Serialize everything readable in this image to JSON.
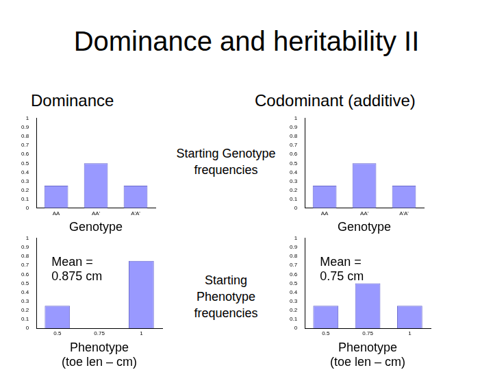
{
  "title": "Dominance and heritability II",
  "column_titles": [
    "Dominance",
    "Codominant (additive)"
  ],
  "row_labels": [
    "Starting Genotype frequencies",
    "Starting Phenotype frequencies"
  ],
  "chart_data": [
    {
      "type": "bar",
      "categories": [
        "AA",
        "AA'",
        "A'A'"
      ],
      "values": [
        0.25,
        0.5,
        0.25
      ],
      "color": "#9999ff",
      "x_label": [
        "Genotype"
      ],
      "ylim": [
        0,
        1
      ],
      "yticks": [
        0,
        0.1,
        0.2,
        0.3,
        0.4,
        0.5,
        0.6,
        0.7,
        0.8,
        0.9,
        1
      ],
      "grid": false
    },
    {
      "type": "bar",
      "categories": [
        "AA",
        "AA'",
        "A'A'"
      ],
      "values": [
        0.25,
        0.5,
        0.25
      ],
      "color": "#9999ff",
      "x_label": [
        "Genotype"
      ],
      "ylim": [
        0,
        1
      ],
      "yticks": [
        0,
        0.1,
        0.2,
        0.3,
        0.4,
        0.5,
        0.6,
        0.7,
        0.8,
        0.9,
        1
      ],
      "grid": false
    },
    {
      "type": "bar",
      "categories": [
        "0.5",
        "0.75",
        "1"
      ],
      "values": [
        0.25,
        0,
        0.75
      ],
      "color": "#9999ff",
      "x_label": [
        "Phenotype",
        "(toe len – cm)"
      ],
      "annotation": [
        "Mean =",
        "0.875 cm"
      ],
      "ylim": [
        0,
        1
      ],
      "yticks": [
        0,
        0.1,
        0.2,
        0.3,
        0.4,
        0.5,
        0.6,
        0.7,
        0.8,
        0.9,
        1
      ],
      "grid": false
    },
    {
      "type": "bar",
      "categories": [
        "0.5",
        "0.75",
        "1"
      ],
      "values": [
        0.25,
        0.5,
        0.25
      ],
      "color": "#9999ff",
      "x_label": [
        "Phenotype",
        "(toe len – cm)"
      ],
      "annotation": [
        "Mean =",
        "0.75 cm"
      ],
      "ylim": [
        0,
        1
      ],
      "yticks": [
        0,
        0.1,
        0.2,
        0.3,
        0.4,
        0.5,
        0.6,
        0.7,
        0.8,
        0.9,
        1
      ],
      "grid": false
    }
  ]
}
